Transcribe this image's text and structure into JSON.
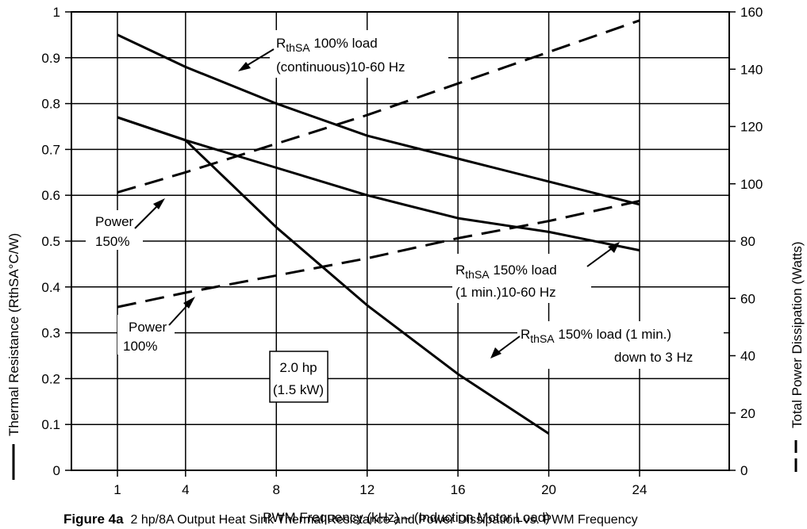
{
  "chart_data": {
    "type": "line",
    "xlabel": "PWM Frequency (kHz) – (Induction Motor Load)",
    "ylabel": "Thermal Resistance (RthSA°C/W)",
    "y2label": "Total Power Dissipation (Watts)",
    "x_ticks": [
      "1",
      "4",
      "8",
      "12",
      "16",
      "20",
      "24"
    ],
    "y_ticks": [
      "0",
      "0.1",
      "0.2",
      "0.3",
      "0.4",
      "0.5",
      "0.6",
      "0.7",
      "0.8",
      "0.9",
      "1"
    ],
    "y2_ticks": [
      "0",
      "20",
      "40",
      "60",
      "80",
      "100",
      "120",
      "140",
      "160"
    ],
    "ylim": [
      0,
      1
    ],
    "y2lim": [
      0,
      160
    ],
    "grid": true,
    "series": [
      {
        "name": "RthSA 100% load (continuous)10-60 Hz",
        "axis": "left",
        "style": "solid",
        "x": [
          1,
          4,
          8,
          12,
          16,
          20,
          24
        ],
        "values": [
          0.95,
          0.88,
          0.8,
          0.73,
          0.68,
          0.63,
          0.58
        ]
      },
      {
        "name": "RthSA 150% load (1 min.)10-60 Hz",
        "axis": "left",
        "style": "solid",
        "x": [
          1,
          4,
          8,
          12,
          16,
          20,
          24
        ],
        "values": [
          0.77,
          0.72,
          0.66,
          0.6,
          0.55,
          0.52,
          0.48
        ]
      },
      {
        "name": "RthSA 150% load (1 min.) down to 3 Hz",
        "axis": "left",
        "style": "solid",
        "x": [
          1,
          4,
          8,
          12,
          16,
          20
        ],
        "values": [
          0.77,
          0.72,
          0.53,
          0.36,
          0.21,
          0.08
        ]
      },
      {
        "name": "Power 150%",
        "axis": "right",
        "style": "dashed",
        "x": [
          1,
          4,
          8,
          12,
          16,
          20,
          24
        ],
        "values": [
          97,
          104,
          114,
          124,
          135,
          146,
          157
        ]
      },
      {
        "name": "Power 100%",
        "axis": "right",
        "style": "dashed",
        "x": [
          1,
          4,
          8,
          12,
          16,
          20,
          24
        ],
        "values": [
          57,
          62,
          68,
          74,
          81,
          87,
          94
        ]
      }
    ],
    "annotations": {
      "r100_line1_rest": " 100% load",
      "r100_line2": "(continuous)10-60 Hz",
      "power150_line1": "Power",
      "power150_line2": "150%",
      "power100_line1": "Power",
      "power100_line2": "100%",
      "r150_line1_rest": " 150% load",
      "r150_line2": "(1 min.)10-60 Hz",
      "r150low_line1_rest": " 150% load (1 min.)",
      "r150low_line2": "down to 3 Hz",
      "rth_main": "R",
      "rth_sub": "thSA",
      "box_line1": "2.0 hp",
      "box_line2": "(1.5 kW)"
    }
  },
  "caption": {
    "label": "Figure 4a",
    "text": "2 hp/8A Output Heat Sink Thermal Resistance and Power Dissipation vs. PWM Frequency"
  }
}
